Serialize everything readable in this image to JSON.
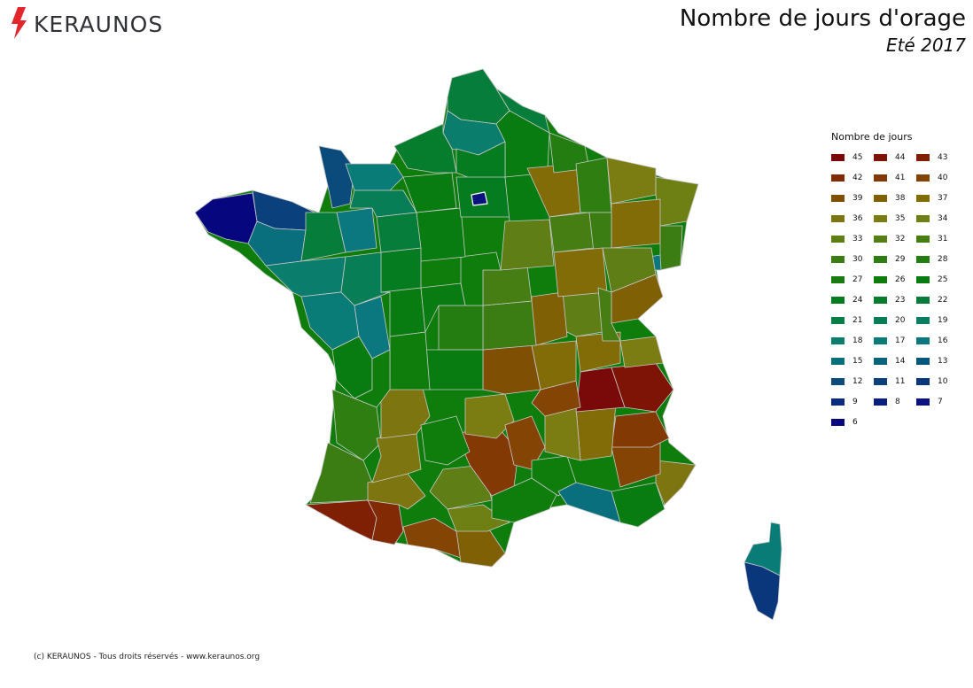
{
  "brand": {
    "name": "KERAUNOS",
    "accent_color": "#e3262b",
    "text_color": "#2f3136",
    "icon": "lightning-bolt-icon"
  },
  "header": {
    "title": "Nombre de jours d'orage",
    "subtitle": "Eté 2017"
  },
  "legend": {
    "title": "Nombre de jours",
    "items": [
      {
        "label": "45",
        "color": "#7a0a0a"
      },
      {
        "label": "44",
        "color": "#7e1406"
      },
      {
        "label": "43",
        "color": "#7f2004"
      },
      {
        "label": "42",
        "color": "#812a03"
      },
      {
        "label": "41",
        "color": "#833903"
      },
      {
        "label": "40",
        "color": "#844404"
      },
      {
        "label": "39",
        "color": "#7f5004"
      },
      {
        "label": "38",
        "color": "#806005"
      },
      {
        "label": "37",
        "color": "#816c08"
      },
      {
        "label": "36",
        "color": "#7d7510"
      },
      {
        "label": "35",
        "color": "#7b7d12"
      },
      {
        "label": "34",
        "color": "#6e8014"
      },
      {
        "label": "33",
        "color": "#5f7e15"
      },
      {
        "label": "32",
        "color": "#557f16"
      },
      {
        "label": "31",
        "color": "#477e14"
      },
      {
        "label": "30",
        "color": "#3c7d13"
      },
      {
        "label": "29",
        "color": "#2f7e12"
      },
      {
        "label": "28",
        "color": "#247d11"
      },
      {
        "label": "27",
        "color": "#1a7c10"
      },
      {
        "label": "26",
        "color": "#0f7d0c"
      },
      {
        "label": "25",
        "color": "#087c10"
      },
      {
        "label": "24",
        "color": "#067c20"
      },
      {
        "label": "23",
        "color": "#067d2d"
      },
      {
        "label": "22",
        "color": "#067d3a"
      },
      {
        "label": "21",
        "color": "#077d48"
      },
      {
        "label": "20",
        "color": "#087e56"
      },
      {
        "label": "19",
        "color": "#097e62"
      },
      {
        "label": "18",
        "color": "#0a7d6c"
      },
      {
        "label": "17",
        "color": "#0a7c77"
      },
      {
        "label": "16",
        "color": "#0a787e"
      },
      {
        "label": "15",
        "color": "#0a6f7d"
      },
      {
        "label": "14",
        "color": "#0a637c"
      },
      {
        "label": "13",
        "color": "#0a577c"
      },
      {
        "label": "12",
        "color": "#0a4b7b"
      },
      {
        "label": "11",
        "color": "#0a407b"
      },
      {
        "label": "10",
        "color": "#0a367b"
      },
      {
        "label": "9",
        "color": "#0a2b7b"
      },
      {
        "label": "8",
        "color": "#0a1f7c"
      },
      {
        "label": "7",
        "color": "#0a127d"
      },
      {
        "label": "6",
        "color": "#06067e"
      }
    ]
  },
  "footer": {
    "copyright": "(c) KERAUNOS - Tous droits réservés - www.keraunos.org"
  }
}
